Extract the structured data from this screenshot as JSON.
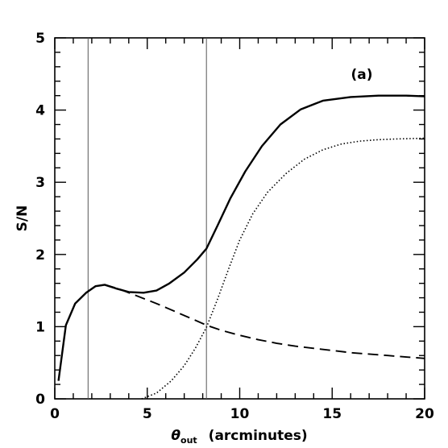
{
  "chart_data": {
    "type": "line",
    "panel_label": "(a)",
    "xlabel": {
      "symbol": "θ",
      "subscript": "out",
      "units": "(arcminutes)"
    },
    "ylabel": "S/N",
    "xlim": [
      0,
      20
    ],
    "ylim": [
      0,
      5
    ],
    "x_ticks": [
      "0",
      "5",
      "10",
      "15",
      "20"
    ],
    "y_ticks": [
      "0",
      "1",
      "2",
      "3",
      "4",
      "5"
    ],
    "grid": false,
    "vertical_lines": [
      1.8,
      8.2
    ],
    "series": [
      {
        "style": "solid",
        "color": "#000000",
        "points": [
          [
            0.2,
            0.25
          ],
          [
            0.6,
            1.02
          ],
          [
            1.1,
            1.32
          ],
          [
            1.7,
            1.47
          ],
          [
            2.2,
            1.56
          ],
          [
            2.7,
            1.58
          ],
          [
            3.3,
            1.53
          ],
          [
            4.0,
            1.48
          ],
          [
            4.8,
            1.47
          ],
          [
            5.5,
            1.5
          ],
          [
            6.2,
            1.6
          ],
          [
            7.0,
            1.75
          ],
          [
            7.7,
            1.93
          ],
          [
            8.2,
            2.08
          ],
          [
            8.8,
            2.4
          ],
          [
            9.5,
            2.78
          ],
          [
            10.3,
            3.15
          ],
          [
            11.2,
            3.5
          ],
          [
            12.2,
            3.8
          ],
          [
            13.3,
            4.01
          ],
          [
            14.5,
            4.13
          ],
          [
            16.0,
            4.18
          ],
          [
            17.5,
            4.2
          ],
          [
            19.0,
            4.2
          ],
          [
            20.0,
            4.19
          ]
        ]
      },
      {
        "style": "dashed",
        "color": "#000000",
        "points": [
          [
            2.7,
            1.58
          ],
          [
            3.5,
            1.52
          ],
          [
            4.5,
            1.42
          ],
          [
            5.5,
            1.32
          ],
          [
            6.5,
            1.21
          ],
          [
            7.5,
            1.1
          ],
          [
            8.2,
            1.02
          ],
          [
            9.0,
            0.95
          ],
          [
            10.0,
            0.88
          ],
          [
            11.0,
            0.82
          ],
          [
            12.0,
            0.77
          ],
          [
            13.0,
            0.73
          ],
          [
            14.0,
            0.7
          ],
          [
            15.0,
            0.67
          ],
          [
            16.0,
            0.64
          ],
          [
            17.0,
            0.62
          ],
          [
            18.0,
            0.6
          ],
          [
            19.0,
            0.58
          ],
          [
            20.0,
            0.56
          ]
        ]
      },
      {
        "style": "dotted",
        "color": "#000000",
        "points": [
          [
            4.7,
            0.0
          ],
          [
            5.5,
            0.08
          ],
          [
            6.3,
            0.25
          ],
          [
            7.0,
            0.46
          ],
          [
            7.6,
            0.7
          ],
          [
            8.2,
            0.99
          ],
          [
            8.8,
            1.38
          ],
          [
            9.4,
            1.8
          ],
          [
            10.0,
            2.2
          ],
          [
            10.7,
            2.56
          ],
          [
            11.5,
            2.86
          ],
          [
            12.5,
            3.12
          ],
          [
            13.5,
            3.32
          ],
          [
            14.5,
            3.45
          ],
          [
            15.5,
            3.53
          ],
          [
            16.5,
            3.57
          ],
          [
            17.5,
            3.59
          ],
          [
            18.5,
            3.6
          ],
          [
            20.0,
            3.61
          ]
        ]
      }
    ]
  }
}
